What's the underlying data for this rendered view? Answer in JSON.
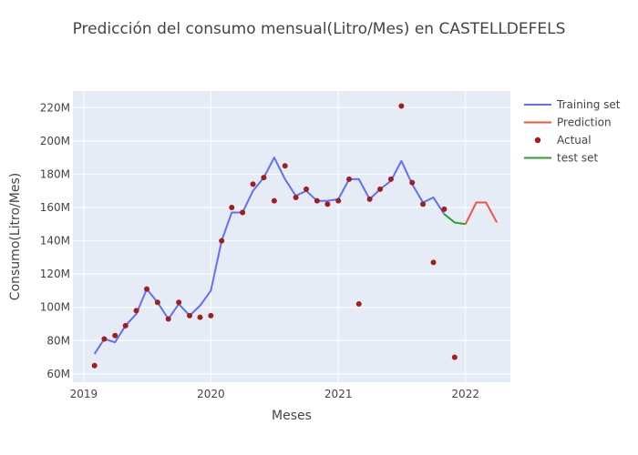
{
  "chart_data": {
    "type": "line",
    "title": "Predicción del consumo mensual(Litro/Mes) en CASTELLDEFELS",
    "xlabel": "Meses",
    "ylabel": "Consumo(Litro/Mes)",
    "xlim": [
      "2018-12-01",
      "2022-05-10"
    ],
    "ylim": [
      55000000,
      230000000
    ],
    "x_ticks": [
      "2019-01-01",
      "2020-01-01",
      "2021-01-01",
      "2022-01-01"
    ],
    "x_tick_labels": [
      "2019",
      "2020",
      "2021",
      "2022"
    ],
    "y_ticks": [
      60000000,
      80000000,
      100000000,
      120000000,
      140000000,
      160000000,
      180000000,
      200000000,
      220000000
    ],
    "y_tick_labels": [
      "60M",
      "80M",
      "100M",
      "120M",
      "140M",
      "160M",
      "180M",
      "200M",
      "220M"
    ],
    "grid": true,
    "legend_position": "top-right",
    "series": [
      {
        "name": "Training set",
        "kind": "line",
        "color": "#636efa",
        "x": [
          "2019-02-01",
          "2019-03-01",
          "2019-04-01",
          "2019-05-01",
          "2019-06-01",
          "2019-07-01",
          "2019-08-01",
          "2019-09-01",
          "2019-10-01",
          "2019-11-01",
          "2019-12-01",
          "2020-01-01",
          "2020-02-01",
          "2020-03-01",
          "2020-04-01",
          "2020-05-01",
          "2020-06-01",
          "2020-07-01",
          "2020-08-01",
          "2020-09-01",
          "2020-10-01",
          "2020-11-01",
          "2020-12-01",
          "2021-01-01",
          "2021-02-01",
          "2021-03-01",
          "2021-04-01",
          "2021-05-01",
          "2021-06-01",
          "2021-07-01",
          "2021-08-01",
          "2021-09-01",
          "2021-10-01",
          "2021-11-01"
        ],
        "y": [
          72000000,
          81000000,
          79000000,
          89000000,
          96000000,
          111000000,
          103000000,
          93000000,
          102000000,
          95000000,
          101000000,
          110000000,
          140000000,
          157000000,
          157000000,
          170000000,
          178000000,
          190000000,
          177000000,
          167000000,
          170000000,
          164000000,
          164000000,
          165000000,
          177000000,
          177000000,
          165000000,
          171000000,
          176000000,
          188000000,
          174000000,
          163000000,
          166000000,
          156000000
        ]
      },
      {
        "name": "Prediction",
        "kind": "line",
        "color": "#ef553b",
        "x": [
          "2022-01-01",
          "2022-02-01",
          "2022-03-01",
          "2022-04-01"
        ],
        "y": [
          150000000,
          163000000,
          163000000,
          151000000
        ]
      },
      {
        "name": "Actual",
        "kind": "markers",
        "color": "#a31d1d",
        "x": [
          "2019-02-01",
          "2019-03-01",
          "2019-04-01",
          "2019-05-01",
          "2019-06-01",
          "2019-07-01",
          "2019-08-01",
          "2019-09-01",
          "2019-10-01",
          "2019-11-01",
          "2019-12-01",
          "2020-01-01",
          "2020-02-01",
          "2020-03-01",
          "2020-04-01",
          "2020-05-01",
          "2020-06-01",
          "2020-07-01",
          "2020-08-01",
          "2020-09-01",
          "2020-10-01",
          "2020-11-01",
          "2020-12-01",
          "2021-01-01",
          "2021-02-01",
          "2021-03-01",
          "2021-04-01",
          "2021-05-01",
          "2021-06-01",
          "2021-07-01",
          "2021-08-01",
          "2021-09-01",
          "2021-10-01",
          "2021-11-01",
          "2021-12-01"
        ],
        "y": [
          65000000,
          81000000,
          83000000,
          89000000,
          98000000,
          111000000,
          103000000,
          93000000,
          103000000,
          95000000,
          94000000,
          95000000,
          140000000,
          160000000,
          157000000,
          174000000,
          178000000,
          164000000,
          185000000,
          166000000,
          171000000,
          164000000,
          162000000,
          164000000,
          177000000,
          102000000,
          165000000,
          171000000,
          177000000,
          221000000,
          175000000,
          162000000,
          127000000,
          159000000,
          70000000
        ]
      },
      {
        "name": "test set",
        "kind": "line",
        "color": "#2ca02c",
        "x": [
          "2021-11-01",
          "2021-12-01",
          "2022-01-01"
        ],
        "y": [
          156000000,
          151000000,
          150000000
        ]
      }
    ]
  }
}
